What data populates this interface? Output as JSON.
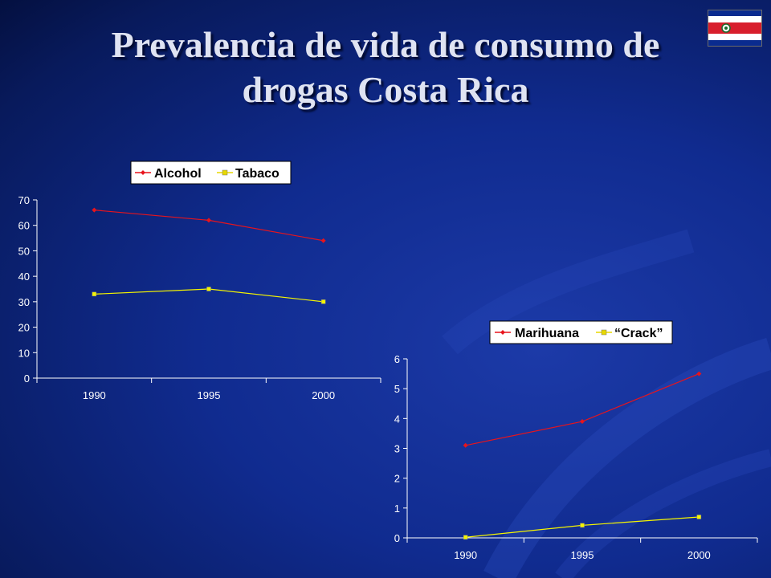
{
  "slide": {
    "title_line1": "Prevalencia de vida de consumo de",
    "title_line2": "drogas Costa Rica"
  },
  "flag": {
    "icon": "costa-rica-flag-icon",
    "colors": [
      "#0a2b8f",
      "#ffffff",
      "#d81e2c"
    ]
  },
  "colors": {
    "red_series": "#e8141c",
    "yellow_series": "#f5f500",
    "axis": "#ffffff"
  },
  "chart_data": [
    {
      "type": "line",
      "categories": [
        "1990",
        "1995",
        "2000"
      ],
      "series": [
        {
          "name": "Alcohol",
          "values": [
            66,
            62,
            54
          ],
          "color": "#e8141c",
          "marker": "diamond"
        },
        {
          "name": "Tabaco",
          "values": [
            33,
            35,
            30
          ],
          "color": "#f5f500",
          "marker": "square"
        }
      ],
      "ylim": [
        0,
        70
      ],
      "yticks": [
        "0",
        "10",
        "20",
        "30",
        "40",
        "50",
        "60",
        "70"
      ],
      "legend": "top",
      "grid": false
    },
    {
      "type": "line",
      "categories": [
        "1990",
        "1995",
        "2000"
      ],
      "series": [
        {
          "name": "Marihuana",
          "values": [
            3.1,
            3.9,
            5.5
          ],
          "color": "#e8141c",
          "marker": "diamond"
        },
        {
          "name": "“Crack”",
          "values": [
            0.02,
            0.42,
            0.7
          ],
          "color": "#f5f500",
          "marker": "square"
        }
      ],
      "ylim": [
        0,
        6
      ],
      "yticks": [
        "0",
        "1",
        "2",
        "3",
        "4",
        "5",
        "6"
      ],
      "legend": "top",
      "grid": false
    }
  ]
}
